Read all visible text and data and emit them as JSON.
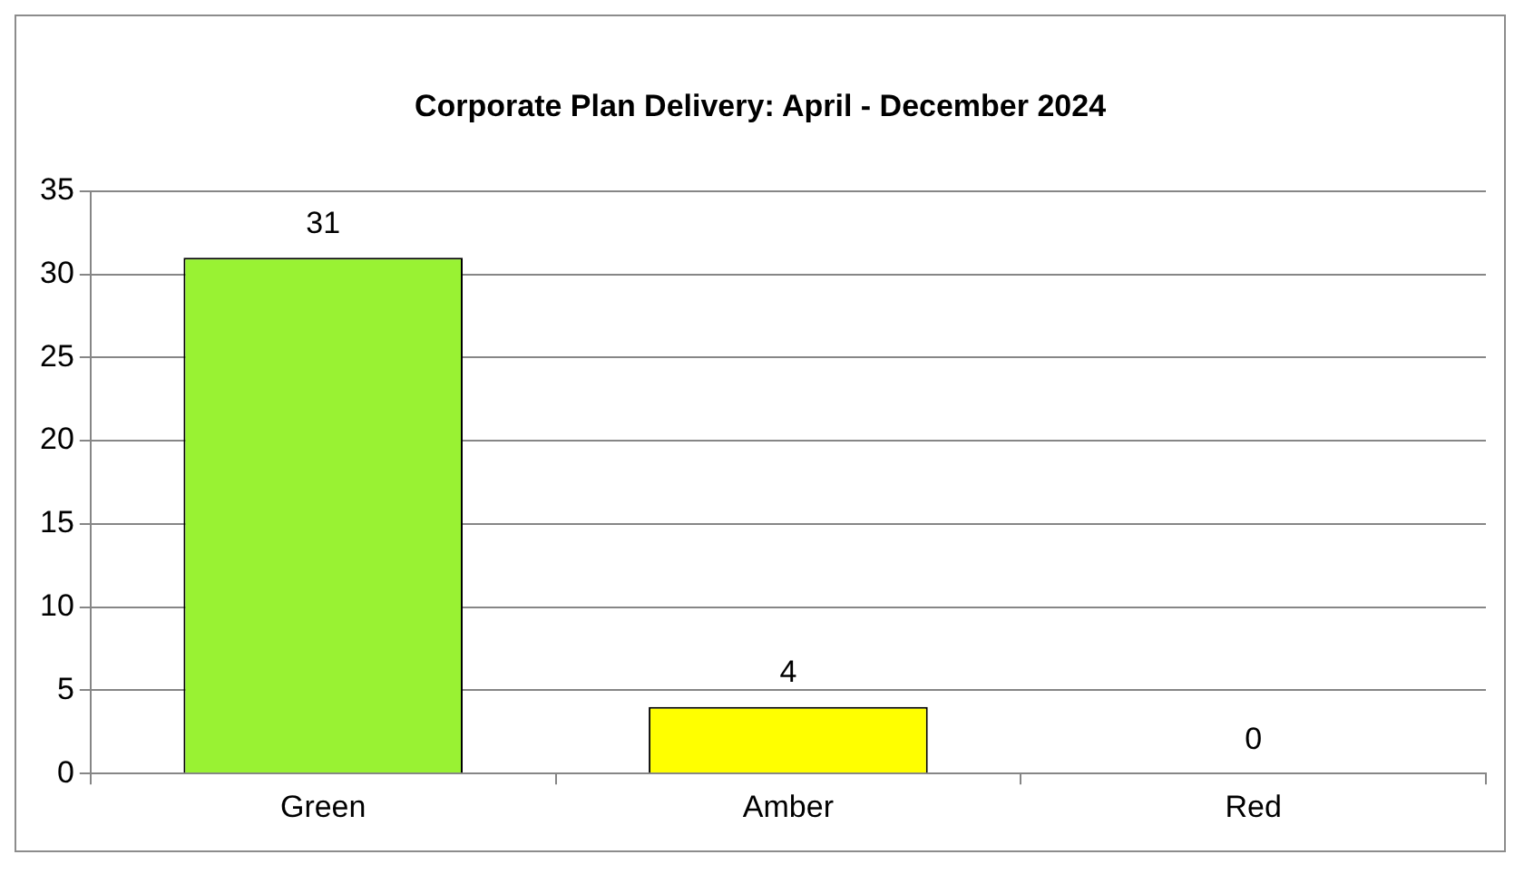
{
  "chart_data": {
    "type": "bar",
    "title": "Corporate Plan Delivery: April - December 2024",
    "categories": [
      "Green",
      "Amber",
      "Red"
    ],
    "values": [
      31,
      4,
      0
    ],
    "colors": [
      "#99f233",
      "#ffff00",
      "#ff0000"
    ],
    "ylim": [
      0,
      35
    ],
    "yticks": [
      0,
      5,
      10,
      15,
      20,
      25,
      30,
      35
    ],
    "grid": "y",
    "legend": false,
    "data_labels": true
  }
}
